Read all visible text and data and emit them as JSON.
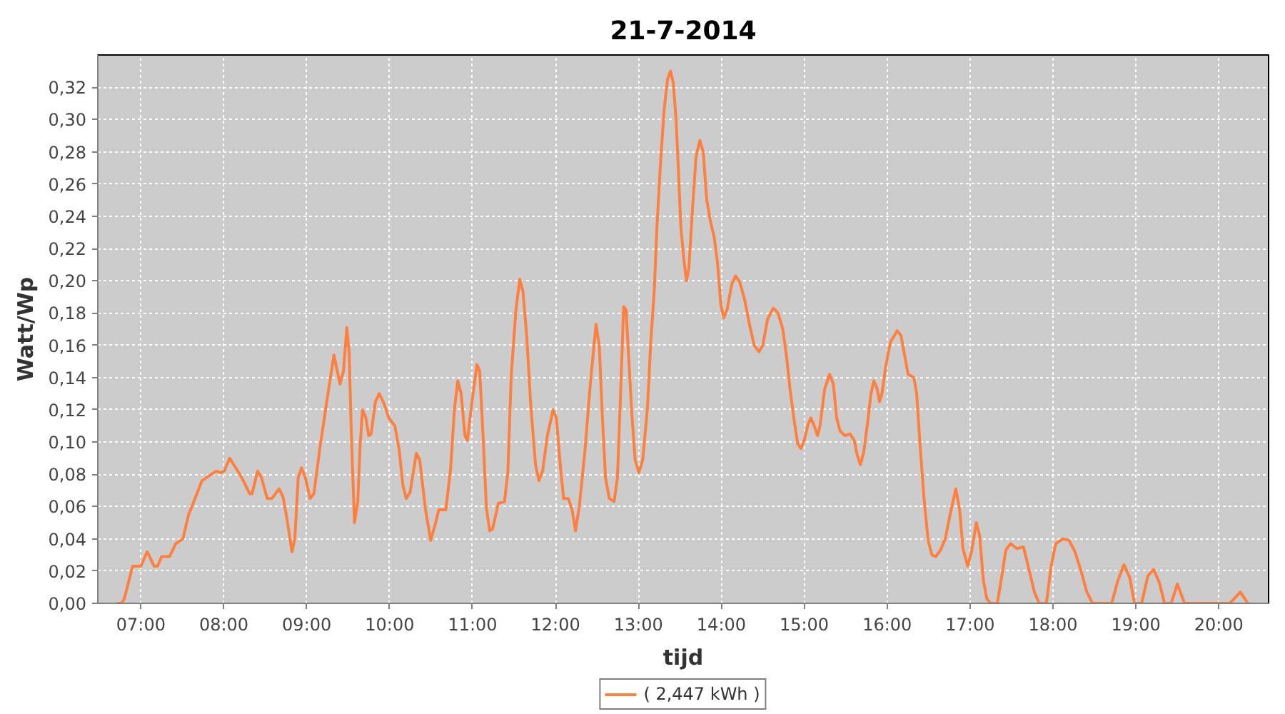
{
  "chart_data": {
    "type": "line",
    "title": "21-7-2014",
    "xlabel": "tijd",
    "ylabel": "Watt/Wp",
    "x": [
      6.713,
      6.77,
      6.8,
      6.9,
      7.0,
      7.075,
      7.16,
      7.2,
      7.25,
      7.345,
      7.42,
      7.506,
      7.575,
      7.63,
      7.736,
      7.82,
      7.908,
      7.966,
      8.006,
      8.07,
      8.18,
      8.236,
      8.31,
      8.34,
      8.408,
      8.454,
      8.523,
      8.58,
      8.667,
      8.713,
      8.753,
      8.822,
      8.856,
      8.897,
      8.937,
      8.983,
      9.04,
      9.086,
      9.155,
      9.241,
      9.328,
      9.368,
      9.402,
      9.443,
      9.483,
      9.511,
      9.534,
      9.575,
      9.615,
      9.644,
      9.672,
      9.713,
      9.747,
      9.776,
      9.828,
      9.874,
      9.931,
      9.989,
      10.063,
      10.115,
      10.16,
      10.2,
      10.247,
      10.322,
      10.362,
      10.43,
      10.494,
      10.55,
      10.592,
      10.678,
      10.736,
      10.782,
      10.822,
      10.862,
      10.908,
      10.937,
      10.983,
      11.052,
      11.086,
      11.126,
      11.167,
      11.207,
      11.241,
      11.31,
      11.385,
      11.425,
      11.466,
      11.523,
      11.569,
      11.609,
      11.655,
      11.7,
      11.759,
      11.8,
      11.845,
      11.902,
      11.971,
      12.011,
      12.057,
      12.098,
      12.155,
      12.2,
      12.241,
      12.287,
      12.356,
      12.42,
      12.489,
      12.529,
      12.563,
      12.603,
      12.649,
      12.707,
      12.747,
      12.787,
      12.822,
      12.851,
      12.879,
      12.92,
      12.96,
      13.006,
      13.052,
      13.109,
      13.149,
      13.19,
      13.224,
      13.264,
      13.31,
      13.351,
      13.386,
      13.42,
      13.454,
      13.483,
      13.511,
      13.546,
      13.58,
      13.609,
      13.649,
      13.695,
      13.741,
      13.782,
      13.822,
      13.868,
      13.914,
      13.954,
      13.994,
      14.029,
      14.069,
      14.126,
      14.172,
      14.224,
      14.282,
      14.339,
      14.397,
      14.454,
      14.5,
      14.557,
      14.626,
      14.684,
      14.741,
      14.787,
      14.828,
      14.874,
      14.92,
      14.96,
      15.0,
      15.046,
      15.08,
      15.121,
      15.161,
      15.19,
      15.247,
      15.305,
      15.351,
      15.391,
      15.431,
      15.489,
      15.552,
      15.603,
      15.638,
      15.678,
      15.718,
      15.764,
      15.805,
      15.839,
      15.879,
      15.908,
      15.937,
      15.983,
      16.04,
      16.121,
      16.167,
      16.213,
      16.253,
      16.322,
      16.356,
      16.397,
      16.443,
      16.494,
      16.54,
      16.586,
      16.644,
      16.701,
      16.759,
      16.828,
      16.874,
      16.914,
      16.971,
      17.017,
      17.075,
      17.115,
      17.161,
      17.201,
      17.247,
      17.328,
      17.374,
      17.431,
      17.489,
      17.563,
      17.644,
      17.701,
      17.776,
      17.833,
      17.92,
      17.977,
      18.034,
      18.121,
      18.195,
      18.264,
      18.339,
      18.408,
      18.477,
      18.707,
      18.782,
      18.856,
      18.925,
      18.983,
      19.069,
      19.144,
      19.213,
      19.282,
      19.345,
      19.425,
      19.5,
      19.586,
      20.132,
      20.259,
      20.351
    ],
    "series": [
      {
        "name": "( 2,447 kWh )",
        "color": "#ff7f3f",
        "values": [
          0,
          0,
          0.003,
          0.023,
          0.023,
          0.032,
          0.023,
          0.023,
          0.029,
          0.029,
          0.037,
          0.04,
          0.055,
          0.062,
          0.076,
          0.079,
          0.082,
          0.081,
          0.082,
          0.09,
          0.081,
          0.076,
          0.068,
          0.068,
          0.082,
          0.078,
          0.065,
          0.065,
          0.071,
          0.066,
          0.055,
          0.032,
          0.04,
          0.078,
          0.084,
          0.078,
          0.065,
          0.068,
          0.095,
          0.125,
          0.154,
          0.144,
          0.136,
          0.144,
          0.171,
          0.156,
          0.112,
          0.05,
          0.063,
          0.098,
          0.12,
          0.115,
          0.104,
          0.105,
          0.125,
          0.13,
          0.124,
          0.115,
          0.11,
          0.095,
          0.073,
          0.065,
          0.069,
          0.093,
          0.089,
          0.059,
          0.039,
          0.049,
          0.058,
          0.058,
          0.084,
          0.121,
          0.138,
          0.13,
          0.104,
          0.101,
          0.121,
          0.148,
          0.144,
          0.104,
          0.059,
          0.045,
          0.046,
          0.062,
          0.063,
          0.081,
          0.141,
          0.182,
          0.201,
          0.193,
          0.164,
          0.124,
          0.086,
          0.076,
          0.082,
          0.104,
          0.12,
          0.115,
          0.086,
          0.065,
          0.065,
          0.058,
          0.045,
          0.06,
          0.095,
          0.136,
          0.173,
          0.159,
          0.118,
          0.078,
          0.065,
          0.063,
          0.078,
          0.133,
          0.184,
          0.182,
          0.156,
          0.118,
          0.089,
          0.081,
          0.089,
          0.121,
          0.162,
          0.193,
          0.234,
          0.271,
          0.306,
          0.325,
          0.33,
          0.323,
          0.3,
          0.268,
          0.234,
          0.214,
          0.2,
          0.208,
          0.242,
          0.277,
          0.287,
          0.28,
          0.251,
          0.237,
          0.227,
          0.211,
          0.185,
          0.177,
          0.182,
          0.198,
          0.203,
          0.199,
          0.188,
          0.173,
          0.16,
          0.156,
          0.16,
          0.176,
          0.183,
          0.18,
          0.17,
          0.153,
          0.133,
          0.115,
          0.099,
          0.096,
          0.101,
          0.111,
          0.115,
          0.11,
          0.104,
          0.11,
          0.133,
          0.142,
          0.136,
          0.115,
          0.107,
          0.104,
          0.105,
          0.101,
          0.092,
          0.086,
          0.094,
          0.112,
          0.13,
          0.138,
          0.133,
          0.125,
          0.13,
          0.147,
          0.162,
          0.169,
          0.166,
          0.153,
          0.142,
          0.14,
          0.13,
          0.098,
          0.066,
          0.039,
          0.03,
          0.029,
          0.033,
          0.04,
          0.055,
          0.071,
          0.058,
          0.034,
          0.023,
          0.032,
          0.05,
          0.042,
          0.014,
          0.003,
          0,
          0,
          0.014,
          0.033,
          0.037,
          0.034,
          0.035,
          0.023,
          0.007,
          0,
          0,
          0.023,
          0.037,
          0.04,
          0.039,
          0.032,
          0.02,
          0.007,
          0,
          0,
          0.014,
          0.024,
          0.016,
          0,
          0,
          0.017,
          0.021,
          0.013,
          0,
          0,
          0.012,
          0,
          0,
          0.007,
          0
        ]
      }
    ],
    "xlim": [
      6.48,
      20.6
    ],
    "ylim": [
      0,
      0.34
    ],
    "xticks": [
      {
        "value": 7,
        "label": "07:00"
      },
      {
        "value": 8,
        "label": "08:00"
      },
      {
        "value": 9,
        "label": "09:00"
      },
      {
        "value": 10,
        "label": "10:00"
      },
      {
        "value": 11,
        "label": "11:00"
      },
      {
        "value": 12,
        "label": "12:00"
      },
      {
        "value": 13,
        "label": "13:00"
      },
      {
        "value": 14,
        "label": "14:00"
      },
      {
        "value": 15,
        "label": "15:00"
      },
      {
        "value": 16,
        "label": "16:00"
      },
      {
        "value": 17,
        "label": "17:00"
      },
      {
        "value": 18,
        "label": "18:00"
      },
      {
        "value": 19,
        "label": "19:00"
      },
      {
        "value": 20,
        "label": "20:00"
      }
    ],
    "yticks": [
      {
        "value": 0,
        "label": "0,00"
      },
      {
        "value": 0.02,
        "label": "0,02"
      },
      {
        "value": 0.04,
        "label": "0,04"
      },
      {
        "value": 0.06,
        "label": "0,06"
      },
      {
        "value": 0.08,
        "label": "0,08"
      },
      {
        "value": 0.1,
        "label": "0,10"
      },
      {
        "value": 0.12,
        "label": "0,12"
      },
      {
        "value": 0.14,
        "label": "0,14"
      },
      {
        "value": 0.16,
        "label": "0,16"
      },
      {
        "value": 0.18,
        "label": "0,18"
      },
      {
        "value": 0.2,
        "label": "0,20"
      },
      {
        "value": 0.22,
        "label": "0,22"
      },
      {
        "value": 0.24,
        "label": "0,24"
      },
      {
        "value": 0.26,
        "label": "0,26"
      },
      {
        "value": 0.28,
        "label": "0,28"
      },
      {
        "value": 0.3,
        "label": "0,30"
      },
      {
        "value": 0.32,
        "label": "0,32"
      }
    ],
    "grid": true,
    "legend": "bottom",
    "line_style": "solid"
  }
}
